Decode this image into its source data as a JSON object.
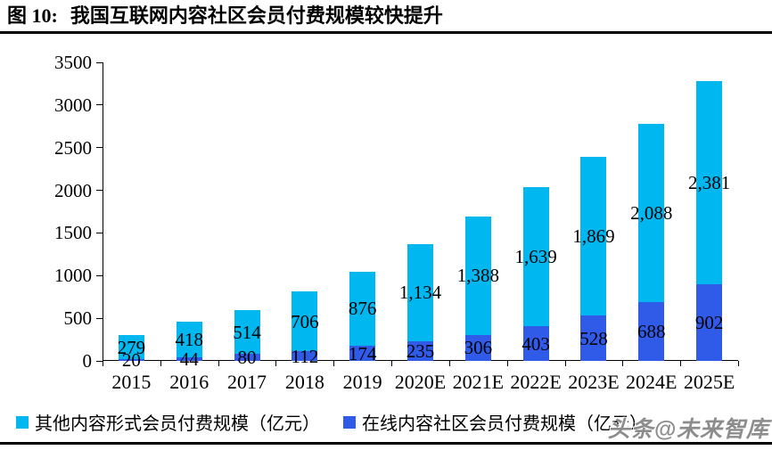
{
  "figure": {
    "title_prefix": "图 10:",
    "title": "我国互联网内容社区会员付费规模较快提升"
  },
  "chart_data": {
    "type": "bar",
    "stacked": true,
    "title": "我国互联网内容社区会员付费规模较快提升",
    "xlabel": "",
    "ylabel": "",
    "unit": "亿元",
    "categories": [
      "2015",
      "2016",
      "2017",
      "2018",
      "2019",
      "2020E",
      "2021E",
      "2022E",
      "2023E",
      "2024E",
      "2025E"
    ],
    "series": [
      {
        "name": "在线内容社区会员付费规模（亿元）",
        "color": "#2F5BE8",
        "values": [
          20,
          44,
          80,
          112,
          174,
          235,
          306,
          403,
          528,
          688,
          902
        ],
        "labels": [
          "20",
          "44",
          "80",
          "112",
          "174",
          "235",
          "306",
          "403",
          "528",
          "688",
          "902"
        ]
      },
      {
        "name": "其他内容形式会员付费规模（亿元）",
        "color": "#00B7F0",
        "values": [
          279,
          418,
          514,
          706,
          876,
          1134,
          1388,
          1639,
          1869,
          2088,
          2381
        ],
        "labels": [
          "279",
          "418",
          "514",
          "706",
          "876",
          "1,134",
          "1,388",
          "1,639",
          "1,869",
          "2,088",
          "2,381"
        ]
      }
    ],
    "ylim": [
      0,
      3500
    ],
    "ytick_step": 500,
    "yticks": [
      "0",
      "500",
      "1000",
      "1500",
      "2000",
      "2500",
      "3000",
      "3500"
    ],
    "grid": false,
    "legend_position": "bottom"
  },
  "legend": {
    "items": [
      {
        "label": "其他内容形式会员付费规模（亿元）",
        "color": "#00B7F0"
      },
      {
        "label": "在线内容社区会员付费规模（亿元）",
        "color": "#2F5BE8"
      }
    ]
  },
  "watermark": "头条@未来智库"
}
